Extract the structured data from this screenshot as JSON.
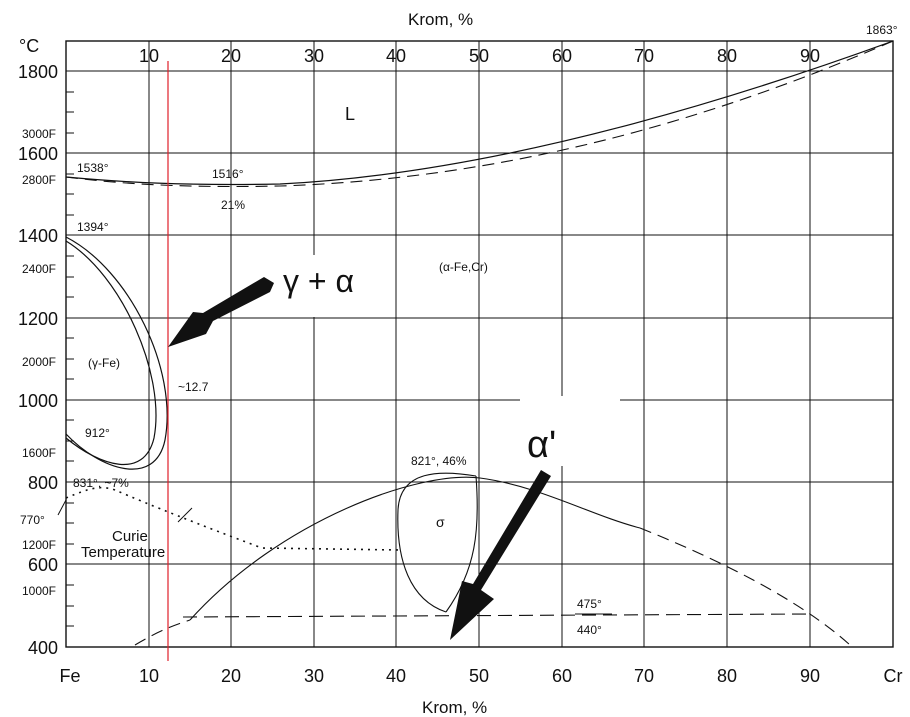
{
  "axis": {
    "top_title": "Krom, %",
    "bottom_title": "Krom, %",
    "celsius_unit": "°C",
    "top_ticks": [
      "10",
      "20",
      "30",
      "40",
      "50",
      "60",
      "70",
      "80",
      "90"
    ],
    "bottom_ticks": [
      "Fe",
      "10",
      "20",
      "30",
      "40",
      "50",
      "60",
      "70",
      "80",
      "90",
      "Cr"
    ],
    "celsius_ticks": [
      "1800",
      "1600",
      "1400",
      "1200",
      "1000",
      "800",
      "600",
      "400"
    ],
    "fahrenheit_ticks": [
      "3000F",
      "2800F",
      "2400F",
      "2000F",
      "1600F",
      "1200F",
      "1000F"
    ]
  },
  "labels": {
    "liquid": "L",
    "t1863": "1863°",
    "t1538": "1538°",
    "t1516": "1516°",
    "pct21": "21%",
    "t1394": "1394°",
    "alpha_phase": "(α-Fe,Cr)",
    "gamma_phase": "(γ-Fe)",
    "approx127": "~12.7",
    "t912": "912°",
    "t821": "821°, 46%",
    "t831": "831°, ~7%",
    "sigma": "σ",
    "t770": "770°",
    "curie1": "Curie",
    "curie2": "Temperature",
    "t475": "475°",
    "t440": "440°"
  },
  "annotations": {
    "gamma_alpha": "γ + α",
    "alpha_prime": "α'"
  }
}
